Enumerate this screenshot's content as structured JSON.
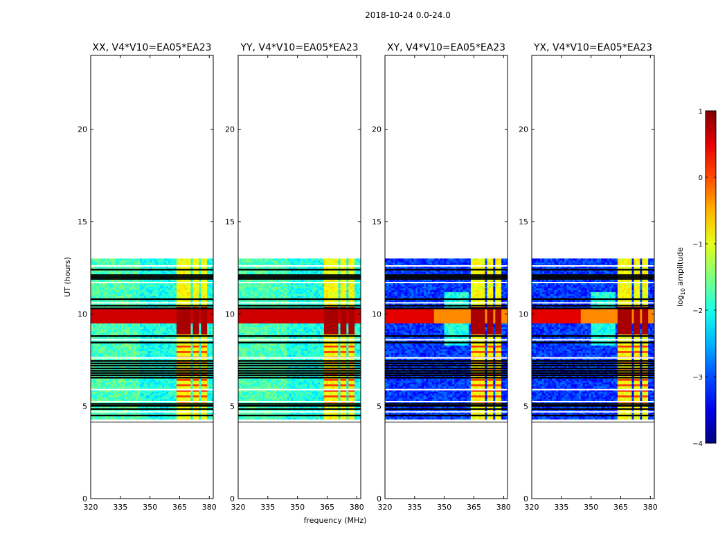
{
  "suptitle": "2018-10-24 0.0-24.0",
  "chart_data": {
    "type": "heatmap",
    "x_range_mhz": [
      320,
      382
    ],
    "y_range_hours": [
      0,
      24
    ],
    "x_ticks": [
      320,
      335,
      350,
      365,
      380
    ],
    "y_ticks": [
      0,
      5,
      10,
      15,
      20
    ],
    "xlabel": "frequency (MHz)",
    "ylabel": "UT (hours)",
    "data_time_range_hours": [
      4.3,
      13.0
    ],
    "panels": [
      {
        "title": "XX, V4*V10=EA05*EA23",
        "pol": "XX"
      },
      {
        "title": "YY, V4*V10=EA05*EA23",
        "pol": "YY"
      },
      {
        "title": "XY, V4*V10=EA05*EA23",
        "pol": "XY"
      },
      {
        "title": "YX, V4*V10=EA05*EA23",
        "pol": "YX"
      }
    ],
    "colorbar": {
      "label": "log10 amplitude",
      "label_main": "log",
      "label_sub": "10",
      "label_rest": " amplitude",
      "range": [
        -4,
        1
      ],
      "ticks": [
        1,
        0,
        -1,
        -2,
        -3,
        -4
      ],
      "tick_labels": [
        "1",
        "0",
        "−1",
        "−2",
        "−3",
        "−4"
      ],
      "colormap": "jet"
    }
  }
}
